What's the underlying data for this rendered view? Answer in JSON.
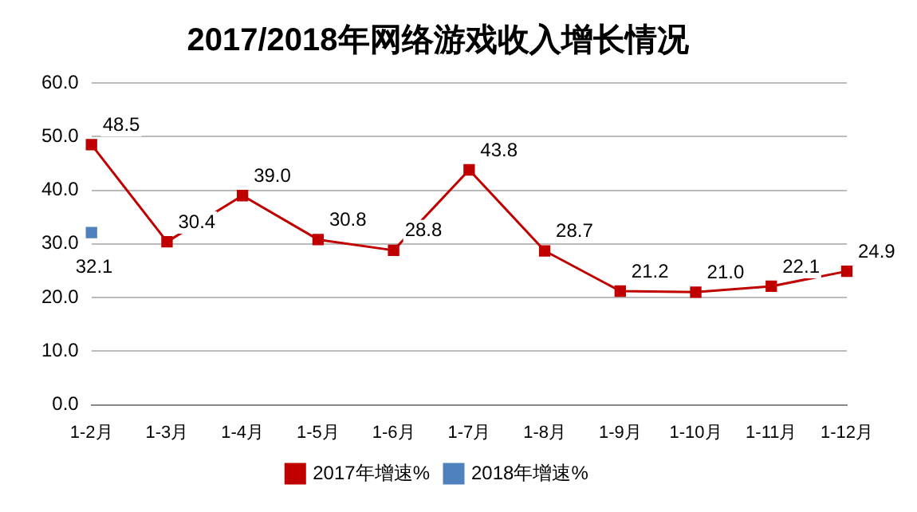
{
  "chart_data": {
    "type": "line",
    "title": "2017/2018年网络游戏收入增长情况",
    "categories": [
      "1-2月",
      "1-3月",
      "1-4月",
      "1-5月",
      "1-6月",
      "1-7月",
      "1-8月",
      "1-9月",
      "1-10月",
      "1-11月",
      "1-12月"
    ],
    "series": [
      {
        "name": "2017年增速%",
        "color": "#c00000",
        "values": [
          48.5,
          30.4,
          39.0,
          30.8,
          28.8,
          43.8,
          28.7,
          21.2,
          21.0,
          22.1,
          24.9
        ],
        "value_labels": [
          "48.5",
          "30.4",
          "39.0",
          "30.8",
          "28.8",
          "43.8",
          "28.7",
          "21.2",
          "21.0",
          "22.1",
          "24.9"
        ]
      },
      {
        "name": "2018年增速%",
        "color": "#4f81bd",
        "values": [
          32.1,
          null,
          null,
          null,
          null,
          null,
          null,
          null,
          null,
          null,
          null
        ],
        "value_labels": [
          "32.1",
          null,
          null,
          null,
          null,
          null,
          null,
          null,
          null,
          null,
          null
        ]
      }
    ],
    "ylim": [
      0,
      60
    ],
    "yticks": [
      {
        "value": 0,
        "label": "0.0"
      },
      {
        "value": 10,
        "label": "10.0"
      },
      {
        "value": 20,
        "label": "20.0"
      },
      {
        "value": 30,
        "label": "30.0"
      },
      {
        "value": 40,
        "label": "40.0"
      },
      {
        "value": 50,
        "label": "50.0"
      },
      {
        "value": 60,
        "label": "60.0"
      }
    ],
    "grid": "y",
    "legend": "bottom",
    "marker": "square",
    "line_style": "solid"
  }
}
